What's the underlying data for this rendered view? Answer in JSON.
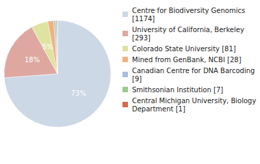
{
  "chart_data": {
    "type": "pie",
    "categories": [
      "Centre for Biodiversity Genomics [1174]",
      "University of California, Berkeley [293]",
      "Colorado State University [81]",
      "Mined from GenBank, NCBI [28]",
      "Canadian Centre for DNA Barcoding [9]",
      "Smithsonian Institution [7]",
      "Central Michigan University, Biology Department [1]"
    ],
    "values": [
      73,
      18,
      5,
      1.8,
      0.6,
      0.4,
      0.1
    ],
    "value_labels": [
      "73%",
      "18%",
      "5%",
      null,
      null,
      null,
      null
    ],
    "data_labels": true,
    "colors": [
      "#ccd8e6",
      "#dea8a1",
      "#dfe3a2",
      "#efb27f",
      "#a9bfdc",
      "#9cc98d",
      "#d8674f"
    ],
    "legend": "top-right"
  }
}
